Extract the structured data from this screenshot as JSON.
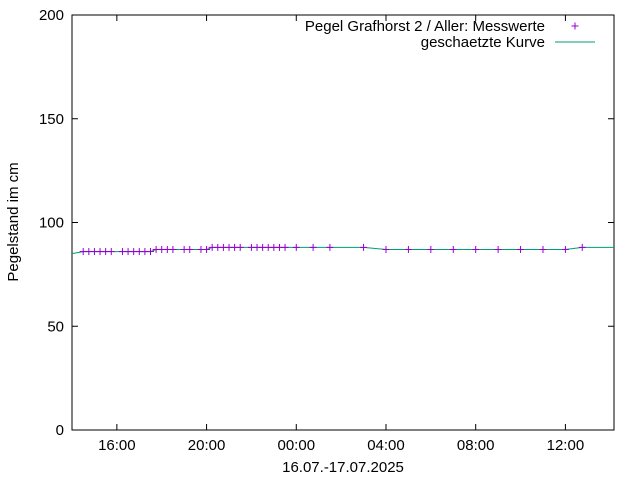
{
  "chart_data": {
    "type": "line",
    "title": "",
    "xlabel": "16.07.-17.07.2025",
    "ylabel": "Pegelstand im cm",
    "ylim": [
      0,
      200
    ],
    "xlim": [
      "2025-07-16T14:00",
      "2025-07-17T14:10"
    ],
    "yticks": [
      0,
      50,
      100,
      150,
      200
    ],
    "xticks": [
      {
        "label": "16:00",
        "at": "2025-07-16T16:00"
      },
      {
        "label": "20:00",
        "at": "2025-07-16T20:00"
      },
      {
        "label": "00:00",
        "at": "2025-07-17T00:00"
      },
      {
        "label": "04:00",
        "at": "2025-07-17T04:00"
      },
      {
        "label": "08:00",
        "at": "2025-07-17T08:00"
      },
      {
        "label": "12:00",
        "at": "2025-07-17T12:00"
      }
    ],
    "grid": false,
    "legend": "top-right",
    "series": [
      {
        "name": "Pegel Grafhorst 2 / Aller: Messwerte",
        "marker": "plus",
        "color": "#9400d3",
        "points": [
          [
            "2025-07-16T14:30",
            86
          ],
          [
            "2025-07-16T14:45",
            86
          ],
          [
            "2025-07-16T15:00",
            86
          ],
          [
            "2025-07-16T15:15",
            86
          ],
          [
            "2025-07-16T15:30",
            86
          ],
          [
            "2025-07-16T15:45",
            86
          ],
          [
            "2025-07-16T16:15",
            86
          ],
          [
            "2025-07-16T16:30",
            86
          ],
          [
            "2025-07-16T16:45",
            86
          ],
          [
            "2025-07-16T17:00",
            86
          ],
          [
            "2025-07-16T17:15",
            86
          ],
          [
            "2025-07-16T17:30",
            86
          ],
          [
            "2025-07-16T17:45",
            87
          ],
          [
            "2025-07-16T18:00",
            87
          ],
          [
            "2025-07-16T18:15",
            87
          ],
          [
            "2025-07-16T18:30",
            87
          ],
          [
            "2025-07-16T19:00",
            87
          ],
          [
            "2025-07-16T19:15",
            87
          ],
          [
            "2025-07-16T19:45",
            87
          ],
          [
            "2025-07-16T20:00",
            87
          ],
          [
            "2025-07-16T20:15",
            88
          ],
          [
            "2025-07-16T20:30",
            88
          ],
          [
            "2025-07-16T20:45",
            88
          ],
          [
            "2025-07-16T21:00",
            88
          ],
          [
            "2025-07-16T21:15",
            88
          ],
          [
            "2025-07-16T21:30",
            88
          ],
          [
            "2025-07-16T22:00",
            88
          ],
          [
            "2025-07-16T22:15",
            88
          ],
          [
            "2025-07-16T22:30",
            88
          ],
          [
            "2025-07-16T22:45",
            88
          ],
          [
            "2025-07-16T23:00",
            88
          ],
          [
            "2025-07-16T23:15",
            88
          ],
          [
            "2025-07-16T23:30",
            88
          ],
          [
            "2025-07-17T00:00",
            88
          ],
          [
            "2025-07-17T00:45",
            88
          ],
          [
            "2025-07-17T01:30",
            88
          ],
          [
            "2025-07-17T03:00",
            88
          ],
          [
            "2025-07-17T04:00",
            87
          ],
          [
            "2025-07-17T05:00",
            87
          ],
          [
            "2025-07-17T06:00",
            87
          ],
          [
            "2025-07-17T07:00",
            87
          ],
          [
            "2025-07-17T08:00",
            87
          ],
          [
            "2025-07-17T09:00",
            87
          ],
          [
            "2025-07-17T10:00",
            87
          ],
          [
            "2025-07-17T11:00",
            87
          ],
          [
            "2025-07-17T12:00",
            87
          ],
          [
            "2025-07-17T12:45",
            88
          ]
        ]
      },
      {
        "name": "geschaetzte Kurve",
        "marker": "line",
        "color": "#009e73",
        "points": [
          [
            "2025-07-16T14:00",
            85
          ],
          [
            "2025-07-16T14:30",
            86
          ],
          [
            "2025-07-16T17:30",
            86
          ],
          [
            "2025-07-16T17:45",
            87
          ],
          [
            "2025-07-16T20:00",
            87
          ],
          [
            "2025-07-16T20:15",
            88
          ],
          [
            "2025-07-17T03:00",
            88
          ],
          [
            "2025-07-17T04:00",
            87
          ],
          [
            "2025-07-17T12:00",
            87
          ],
          [
            "2025-07-17T12:45",
            88
          ],
          [
            "2025-07-17T14:10",
            88
          ]
        ]
      }
    ]
  }
}
